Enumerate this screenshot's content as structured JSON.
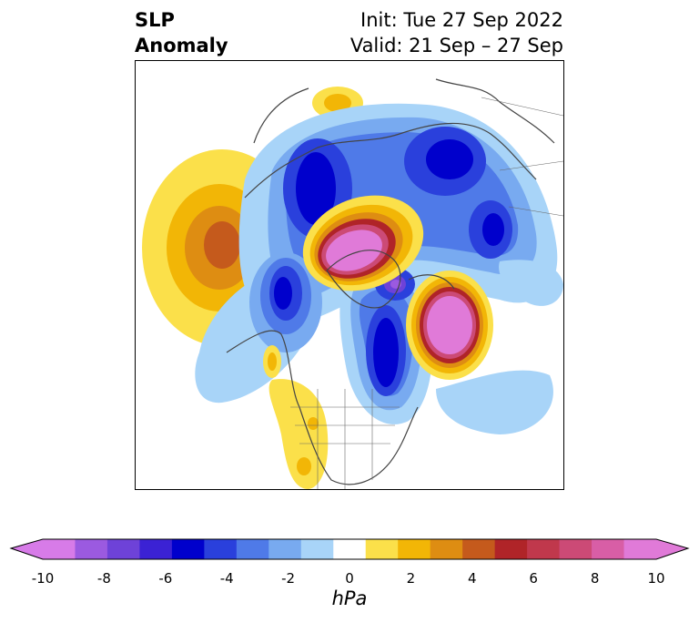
{
  "title": {
    "left_line1": "SLP",
    "left_line2": "Anomaly",
    "right_line1": "Init: Tue 27 Sep 2022",
    "right_line2": "Valid: 21 Sep – 27 Sep"
  },
  "colorbar": {
    "unit": "hPa",
    "ticks": [
      "-10",
      "-8",
      "-6",
      "-4",
      "-2",
      "0",
      "2",
      "4",
      "6",
      "8",
      "10"
    ],
    "colors": [
      "#d77be8",
      "#9b5ae0",
      "#6e42d8",
      "#3b22d4",
      "#0000cc",
      "#2a40dc",
      "#4f7ae8",
      "#78aaf0",
      "#a8d4f8",
      "#ffffff",
      "#fbe04a",
      "#f2b606",
      "#de8d12",
      "#c55a1c",
      "#b02428",
      "#c0384c",
      "#cc4a76",
      "#d85ea6",
      "#e07ad8"
    ],
    "low_extend_color": "#d77be8",
    "high_extend_color": "#e07ad8"
  }
}
